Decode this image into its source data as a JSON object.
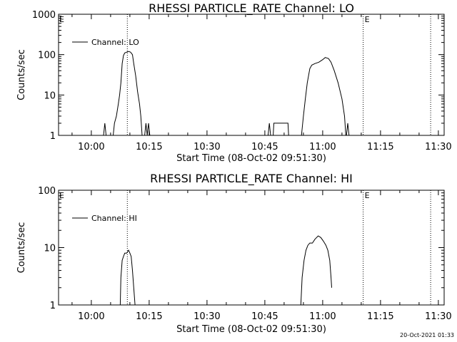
{
  "footer": "20-Oct-2021 01:33",
  "chart_data": [
    {
      "type": "line",
      "title": "RHESSI PARTICLE_RATE Channel: LO",
      "xlabel": "Start Time (08-Oct-02 09:51:30)",
      "ylabel": "Counts/sec",
      "yscale": "log",
      "ylim": [
        1,
        1000
      ],
      "xlim": [
        "09:51:30",
        "11:31:30"
      ],
      "x_unit": "HH:MM",
      "xticks": [
        "10:00",
        "10:15",
        "10:30",
        "10:45",
        "11:00",
        "11:15",
        "11:30"
      ],
      "yticks": [
        "1",
        "10",
        "100",
        "1000"
      ],
      "legend": "Channel: LO",
      "legend_position": "top-left",
      "vlines": [
        {
          "x": "10:09:20",
          "label": ""
        },
        {
          "x": "11:10:30",
          "label": "E"
        },
        {
          "x": "11:28:00",
          "label": ""
        }
      ],
      "series": [
        {
          "name": "Channel: LO",
          "segments": [
            [
              [
                "10:03:10",
                1
              ],
              [
                "10:03:30",
                2
              ],
              [
                "10:03:50",
                1
              ]
            ],
            [
              [
                "10:05:40",
                1
              ],
              [
                "10:06:00",
                2
              ],
              [
                "10:06:30",
                3
              ],
              [
                "10:07:00",
                6
              ],
              [
                "10:07:20",
                10
              ],
              [
                "10:07:40",
                20
              ],
              [
                "10:08:00",
                60
              ],
              [
                "10:08:20",
                95
              ],
              [
                "10:08:40",
                110
              ],
              [
                "10:09:10",
                115
              ],
              [
                "10:09:40",
                120
              ],
              [
                "10:10:10",
                115
              ],
              [
                "10:10:40",
                100
              ],
              [
                "10:11:00",
                60
              ],
              [
                "10:11:30",
                30
              ],
              [
                "10:12:00",
                12
              ],
              [
                "10:12:30",
                6
              ],
              [
                "10:12:50",
                3
              ],
              [
                "10:13:10",
                1
              ]
            ],
            [
              [
                "10:13:50",
                1
              ],
              [
                "10:14:10",
                2
              ],
              [
                "10:14:30",
                1
              ],
              [
                "10:14:50",
                2
              ],
              [
                "10:15:10",
                1
              ]
            ],
            [
              [
                "10:45:50",
                1
              ],
              [
                "10:46:10",
                2
              ],
              [
                "10:46:30",
                1
              ]
            ],
            [
              [
                "10:47:10",
                1
              ],
              [
                "10:47:20",
                2
              ],
              [
                "10:51:00",
                2
              ],
              [
                "10:51:10",
                1
              ]
            ],
            [
              [
                "10:54:30",
                1
              ],
              [
                "10:55:00",
                3
              ],
              [
                "10:55:30",
                8
              ],
              [
                "10:56:00",
                20
              ],
              [
                "10:56:40",
                45
              ],
              [
                "10:57:10",
                55
              ],
              [
                "10:58:00",
                60
              ],
              [
                "10:59:00",
                65
              ],
              [
                "11:00:00",
                75
              ],
              [
                "11:00:40",
                85
              ],
              [
                "11:01:30",
                80
              ],
              [
                "11:02:10",
                65
              ],
              [
                "11:03:00",
                40
              ],
              [
                "11:04:00",
                20
              ],
              [
                "11:05:00",
                8
              ],
              [
                "11:05:40",
                3
              ],
              [
                "11:06:00",
                1
              ]
            ],
            [
              [
                "11:06:10",
                1
              ],
              [
                "11:06:30",
                2
              ],
              [
                "11:06:50",
                1
              ]
            ]
          ]
        }
      ]
    },
    {
      "type": "line",
      "title": "RHESSI PARTICLE_RATE Channel: HI",
      "xlabel": "Start Time (08-Oct-02 09:51:30)",
      "ylabel": "Counts/sec",
      "yscale": "log",
      "ylim": [
        1,
        100
      ],
      "xlim": [
        "09:51:30",
        "11:31:30"
      ],
      "x_unit": "HH:MM",
      "xticks": [
        "10:00",
        "10:15",
        "10:30",
        "10:45",
        "11:00",
        "11:15",
        "11:30"
      ],
      "yticks": [
        "1",
        "10",
        "100"
      ],
      "legend": "Channel: HI",
      "legend_position": "top-left",
      "vlines": [
        {
          "x": "10:09:20",
          "label": ""
        },
        {
          "x": "11:10:30",
          "label": "E"
        },
        {
          "x": "11:28:00",
          "label": ""
        }
      ],
      "series": [
        {
          "name": "Channel: HI",
          "segments": [
            [
              [
                "10:07:30",
                1
              ],
              [
                "10:07:40",
                3
              ],
              [
                "10:08:00",
                6
              ],
              [
                "10:08:20",
                7
              ],
              [
                "10:08:40",
                8
              ],
              [
                "10:09:10",
                8
              ],
              [
                "10:09:40",
                9
              ],
              [
                "10:10:00",
                8
              ],
              [
                "10:10:20",
                7
              ],
              [
                "10:10:40",
                4
              ],
              [
                "10:11:00",
                2
              ],
              [
                "10:11:20",
                1
              ]
            ],
            [
              [
                "10:54:20",
                1
              ],
              [
                "10:54:40",
                3
              ],
              [
                "10:55:10",
                6
              ],
              [
                "10:55:40",
                9
              ],
              [
                "10:56:10",
                11
              ],
              [
                "10:56:40",
                12
              ],
              [
                "10:57:20",
                12
              ],
              [
                "10:58:00",
                14
              ],
              [
                "10:58:50",
                16
              ],
              [
                "10:59:30",
                15
              ],
              [
                "11:00:10",
                13
              ],
              [
                "11:00:50",
                11
              ],
              [
                "11:01:20",
                9
              ],
              [
                "11:01:50",
                6
              ],
              [
                "11:02:10",
                3
              ],
              [
                "11:02:20",
                2
              ]
            ]
          ]
        }
      ]
    }
  ]
}
